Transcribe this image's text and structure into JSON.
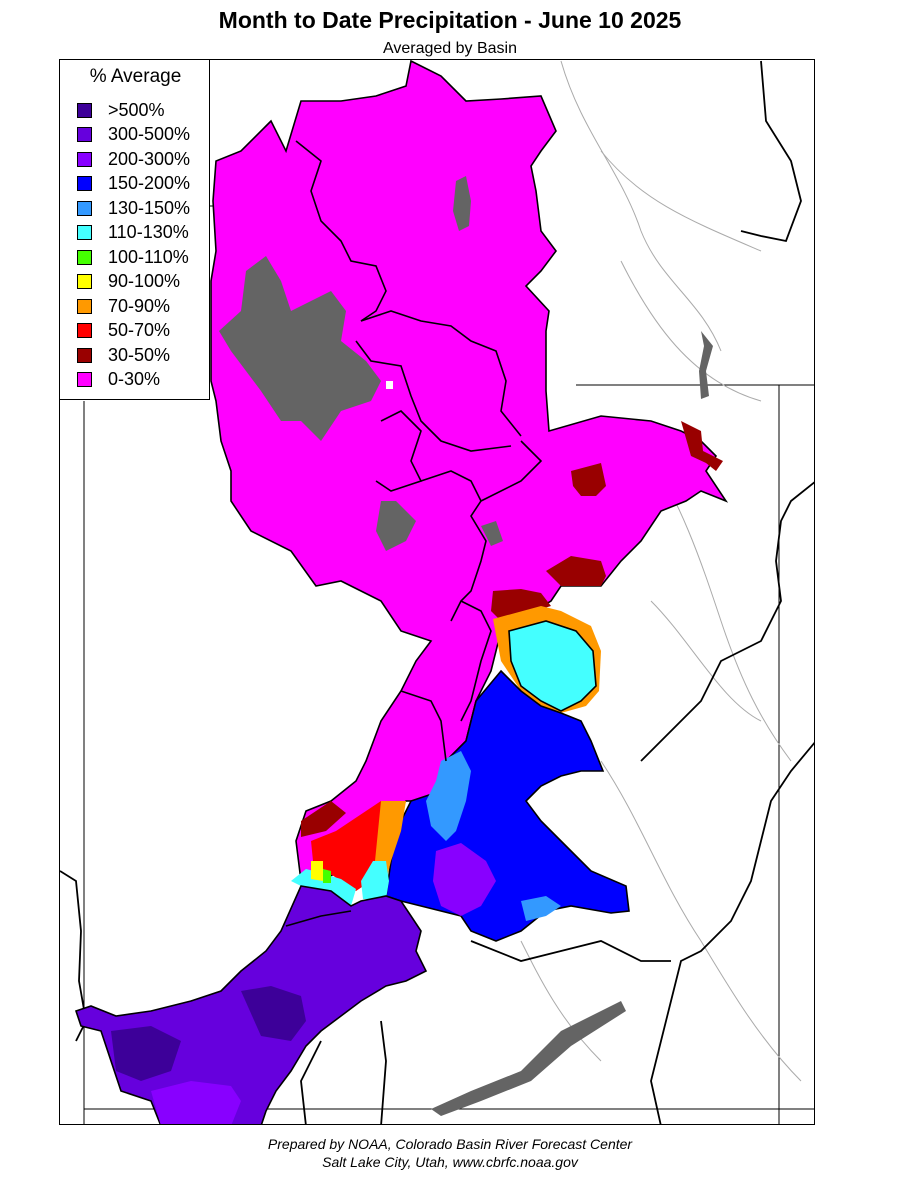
{
  "title": "Month to Date Precipitation - June 10 2025",
  "subtitle": "Averaged by Basin",
  "legend": {
    "title": "% Average",
    "items": [
      {
        "label": ">500%",
        "color": "#3d0099"
      },
      {
        "label": "300-500%",
        "color": "#6600dd"
      },
      {
        "label": "200-300%",
        "color": "#8800ff"
      },
      {
        "label": "150-200%",
        "color": "#0000ff"
      },
      {
        "label": "130-150%",
        "color": "#3399ff"
      },
      {
        "label": "110-130%",
        "color": "#44ffff"
      },
      {
        "label": "100-110%",
        "color": "#44ff00"
      },
      {
        "label": "90-100%",
        "color": "#ffff00"
      },
      {
        "label": "70-90%",
        "color": "#ff9900"
      },
      {
        "label": "50-70%",
        "color": "#ff0000"
      },
      {
        "label": "30-50%",
        "color": "#990000"
      },
      {
        "label": "0-30%",
        "color": "#ff00ff"
      }
    ]
  },
  "colors": {
    "lake": "#646464",
    "basin_boundary": "#000000",
    "state_line": "#000000",
    "river": "#aaaaaa"
  },
  "credit": {
    "line1": "Prepared by NOAA, Colorado Basin River Forecast Center",
    "line2": "Salt Lake City, Utah, www.cbrfc.noaa.gov"
  }
}
